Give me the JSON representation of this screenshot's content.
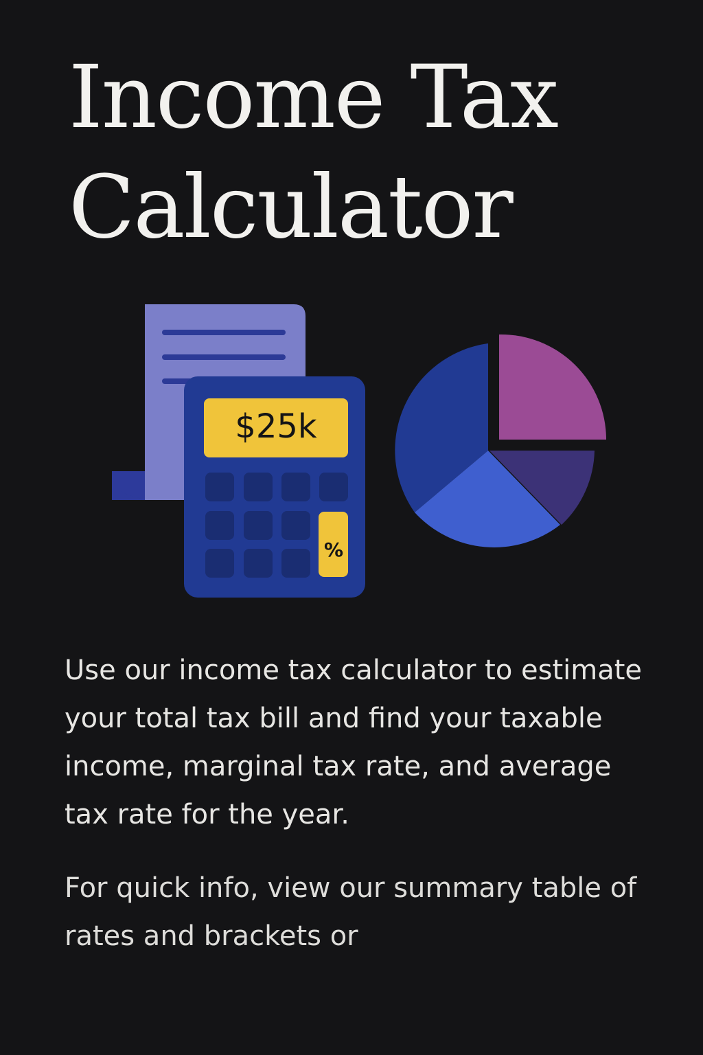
{
  "header": {
    "title_line1": "Income Tax",
    "title_line2": "Calculator"
  },
  "illustration": {
    "calculator_display": "$25k",
    "calculator_percent_key": "%",
    "icons": [
      "document-icon",
      "calculator-icon",
      "pie-chart-icon"
    ],
    "colors": {
      "document": "#7b7fc9",
      "calculator_body": "#213a93",
      "calculator_keys": "#1a2d72",
      "display": "#f0c43a",
      "pie_dark_blue": "#213a93",
      "pie_light_blue": "#3f5fcf",
      "pie_purple": "#9b4b95",
      "pie_dark_purple": "#3c3277"
    }
  },
  "content": {
    "paragraph1": "Use our income tax calculator to estimate your total tax bill and find your taxable income, marginal tax rate, and average tax rate for the year.",
    "paragraph2": "For quick info, view our summary table of rates and brackets or"
  }
}
